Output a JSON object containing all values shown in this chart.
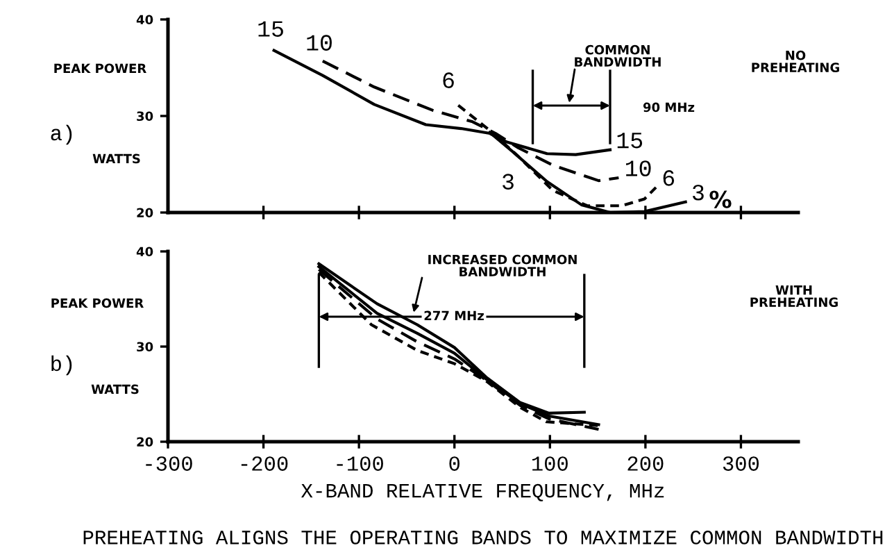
{
  "chart_data": [
    {
      "type": "line",
      "tick_labels": "y",
      "xlim": [
        -300,
        360
      ],
      "xticks": [
        {
          "value": -200,
          "label": null
        },
        {
          "value": -100,
          "label": null
        },
        {
          "value": 0,
          "label": null
        },
        {
          "value": 100,
          "label": null
        },
        {
          "value": 200,
          "label": null
        },
        {
          "value": 300,
          "label": null
        }
      ],
      "ylim": [
        20,
        40
      ],
      "yticks": [
        20,
        30,
        40
      ],
      "series": [
        {
          "name": "15",
          "color": "#000000",
          "line_style": "solid",
          "x": [
            -189,
            -138,
            -84,
            -30,
            7,
            37,
            55,
            97,
            127,
            163
          ],
          "values": [
            36.8,
            34.2,
            31.2,
            29.1,
            28.7,
            28.2,
            27.3,
            26.1,
            26.0,
            26.5
          ]
        },
        {
          "name": "10",
          "color": "#000000",
          "line_style": "dashed",
          "x": [
            -138,
            -84,
            -23,
            19,
            43,
            67,
            103,
            151,
            172
          ],
          "values": [
            35.7,
            33.0,
            30.6,
            29.4,
            28.2,
            26.7,
            24.9,
            23.3,
            23.6
          ]
        },
        {
          "name": "6",
          "color": "#000000",
          "line_style": "dotted",
          "x": [
            4,
            37,
            67,
            103,
            139,
            175,
            199,
            211
          ],
          "values": [
            31.1,
            28.5,
            25.8,
            22.3,
            20.7,
            20.7,
            21.4,
            22.6
          ]
        },
        {
          "name": "3",
          "color": "#000000",
          "line_style": "solid",
          "x": [
            37,
            61,
            97,
            133,
            163,
            199,
            242
          ],
          "values": [
            28.3,
            26.3,
            23.2,
            20.8,
            20.0,
            20.1,
            21.1
          ]
        }
      ],
      "ref_lines": [
        {
          "axis": "x",
          "value": 82,
          "color": "#000000"
        },
        {
          "axis": "x",
          "value": 163,
          "color": "#000000"
        }
      ],
      "annotations": [
        "a)",
        "PEAK POWER",
        "WATTS",
        "NO PREHEATING",
        "COMMON BANDWIDTH",
        "90 MHz",
        "15",
        "10",
        "6",
        "3",
        "%"
      ]
    },
    {
      "type": "line",
      "xlim": [
        -300,
        360
      ],
      "xticks": [
        -300,
        -200,
        -100,
        0,
        100,
        200,
        300
      ],
      "ylim": [
        20,
        40
      ],
      "yticks": [
        20,
        30,
        40
      ],
      "xlabel": "X-BAND RELATIVE FREQUENCY, MHz",
      "series": [
        {
          "color": "#000000",
          "line_style": "solid",
          "x": [
            -142,
            -81,
            -39,
            0,
            33,
            69,
            99,
            136
          ],
          "values": [
            38.7,
            34.5,
            32.3,
            29.9,
            26.8,
            24.1,
            23.0,
            23.1
          ]
        },
        {
          "color": "#000000",
          "line_style": "solid",
          "x": [
            -142,
            -81,
            -39,
            0,
            33,
            69,
            99,
            151
          ],
          "values": [
            38.4,
            33.5,
            31.4,
            29.3,
            26.6,
            24.0,
            22.7,
            21.8
          ]
        },
        {
          "color": "#000000",
          "line_style": "dashed",
          "x": [
            -142,
            -81,
            -39,
            0,
            33,
            69,
            99,
            151
          ],
          "values": [
            38.1,
            32.9,
            30.5,
            28.7,
            26.5,
            23.8,
            22.4,
            21.3
          ]
        },
        {
          "color": "#000000",
          "line_style": "dotted",
          "x": [
            -142,
            -87,
            -39,
            0,
            33,
            69,
            96,
            151
          ],
          "values": [
            37.8,
            32.3,
            29.6,
            28.2,
            26.4,
            23.6,
            22.1,
            21.7
          ]
        }
      ],
      "ref_lines": [
        {
          "axis": "x",
          "value": -142,
          "color": "#000000"
        },
        {
          "axis": "x",
          "value": 136,
          "color": "#000000"
        }
      ],
      "annotations": [
        "b)",
        "PEAK POWER",
        "WATTS",
        "WITH PREHEATING",
        "INCREASED COMMON BANDWIDTH",
        "277 MHz",
        "PREHEATING ALIGNS THE OPERATING BANDS TO MAXIMIZE COMMON BANDWIDTH"
      ]
    }
  ]
}
